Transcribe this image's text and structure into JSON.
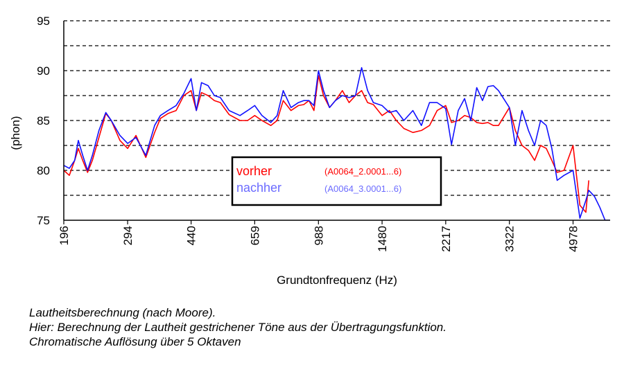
{
  "chart_data": {
    "type": "line",
    "title": "",
    "xlabel": "Grundtonfrequenz (Hz)",
    "ylabel": "(phon)",
    "x_scale": "log",
    "xlim": [
      196,
      6300
    ],
    "ylim": [
      75,
      95
    ],
    "y_ticks": [
      75,
      80,
      85,
      90,
      95
    ],
    "x_ticks": [
      196,
      294,
      440,
      659,
      988,
      1480,
      2217,
      3322,
      4978
    ],
    "grid": "horizontal dashed every 2.5",
    "legend_position": "center",
    "series": [
      {
        "name": "vorher",
        "label": "(A0064_2.0001...6)",
        "color": "#ff0000",
        "x": [
          196,
          203,
          210,
          215,
          221,
          228,
          235,
          245,
          256,
          265,
          280,
          294,
          310,
          330,
          349,
          362,
          380,
          400,
          420,
          440,
          455,
          470,
          490,
          510,
          530,
          560,
          600,
          630,
          659,
          690,
          730,
          760,
          790,
          830,
          870,
          900,
          930,
          960,
          988,
          1020,
          1060,
          1100,
          1150,
          1200,
          1250,
          1300,
          1350,
          1400,
          1480,
          1550,
          1620,
          1700,
          1800,
          1900,
          2000,
          2100,
          2217,
          2300,
          2400,
          2500,
          2600,
          2700,
          2800,
          2900,
          3000,
          3100,
          3322,
          3450,
          3600,
          3750,
          3900,
          4050,
          4200,
          4350,
          4500,
          4700,
          4978,
          5200,
          5400,
          5500
        ],
        "y": [
          80.0,
          79.5,
          81.0,
          82.2,
          81.0,
          79.8,
          81.0,
          83.3,
          85.7,
          85.0,
          83.0,
          82.2,
          83.5,
          81.3,
          83.8,
          85.2,
          85.7,
          86.0,
          87.5,
          88.0,
          86.0,
          87.8,
          87.5,
          87.0,
          86.8,
          85.6,
          85.0,
          85.0,
          85.5,
          85.0,
          84.5,
          85.0,
          87.0,
          86.0,
          86.5,
          86.6,
          87.0,
          86.0,
          89.5,
          87.5,
          86.3,
          87.0,
          88.0,
          86.8,
          87.5,
          88.0,
          86.8,
          86.6,
          85.5,
          86.0,
          85.0,
          84.2,
          83.8,
          84.0,
          84.5,
          86.0,
          86.5,
          84.8,
          85.0,
          85.5,
          85.3,
          84.8,
          84.7,
          84.8,
          84.5,
          84.5,
          86.3,
          84.0,
          82.5,
          82.0,
          81.0,
          82.5,
          82.2,
          81.0,
          79.8,
          80.0,
          82.5,
          76.5,
          75.8,
          79.0
        ]
      },
      {
        "name": "nachher",
        "label": "(A0064_3.0001...6)",
        "color": "#1010ff",
        "x": [
          196,
          203,
          210,
          215,
          221,
          228,
          235,
          245,
          256,
          265,
          280,
          294,
          310,
          330,
          349,
          362,
          380,
          400,
          420,
          440,
          455,
          470,
          490,
          510,
          530,
          560,
          600,
          630,
          659,
          690,
          730,
          760,
          790,
          830,
          870,
          900,
          930,
          960,
          988,
          1020,
          1060,
          1100,
          1150,
          1200,
          1250,
          1300,
          1350,
          1400,
          1480,
          1550,
          1620,
          1700,
          1800,
          1900,
          2000,
          2100,
          2217,
          2300,
          2400,
          2500,
          2600,
          2700,
          2800,
          2900,
          3000,
          3100,
          3322,
          3450,
          3600,
          3750,
          3900,
          4050,
          4200,
          4350,
          4500,
          4700,
          4978,
          5200,
          5400,
          5500,
          5700,
          5900,
          6100,
          6300
        ],
        "y": [
          80.5,
          80.2,
          81.0,
          83.0,
          81.5,
          80.0,
          81.5,
          84.0,
          85.8,
          85.0,
          83.5,
          82.7,
          83.3,
          81.5,
          84.5,
          85.5,
          86.0,
          86.5,
          87.7,
          89.2,
          86.0,
          88.8,
          88.5,
          87.5,
          87.3,
          86.0,
          85.5,
          86.0,
          86.5,
          85.5,
          84.8,
          85.5,
          88.0,
          86.3,
          86.8,
          87.0,
          87.0,
          86.5,
          90.0,
          88.0,
          86.3,
          87.0,
          87.5,
          87.3,
          87.5,
          90.3,
          88.0,
          86.8,
          86.5,
          85.8,
          86.0,
          85.0,
          86.0,
          84.5,
          86.8,
          86.8,
          86.2,
          82.6,
          86.0,
          87.2,
          85.0,
          88.3,
          87.0,
          88.4,
          88.5,
          88.0,
          86.3,
          82.5,
          86.0,
          84.0,
          82.5,
          85.0,
          84.5,
          82.2,
          79.0,
          79.5,
          80.0,
          75.2,
          77.0,
          78.0,
          77.4,
          76.3,
          75.0,
          75.0
        ]
      }
    ]
  },
  "caption": {
    "line1": "Lautheitsberechnung (nach Moore).",
    "line2": "Hier: Berechnung der Lautheit gestrichener Töne aus der Übertragungsfunktion.",
    "line3": "Chromatische Auflösung über 5 Oktaven"
  }
}
